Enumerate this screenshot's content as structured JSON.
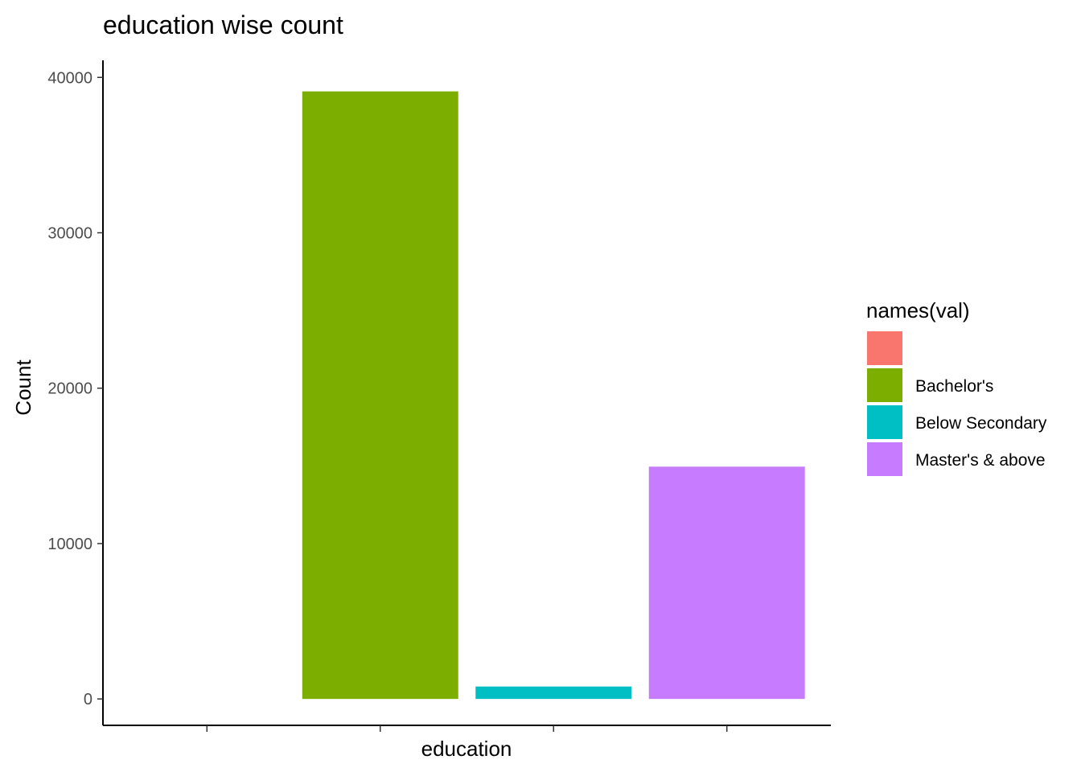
{
  "chart_data": {
    "type": "bar",
    "title": "education wise count",
    "xlabel": "education",
    "ylabel": "Count",
    "categories": [
      "",
      "Bachelor's",
      "Below Secondary",
      "Master's & above"
    ],
    "values": [
      0,
      39100,
      800,
      14950
    ],
    "colors": [
      "#F8766D",
      "#7CAE00",
      "#00BFC4",
      "#C77CFF"
    ],
    "ylim": [
      -1700,
      41100
    ],
    "yticks": [
      0,
      10000,
      20000,
      30000,
      40000
    ],
    "grid": false,
    "legend": {
      "title": "names(val)",
      "placement": "right",
      "entries": [
        "",
        "Bachelor's",
        "Below Secondary",
        "Master's & above"
      ]
    }
  }
}
